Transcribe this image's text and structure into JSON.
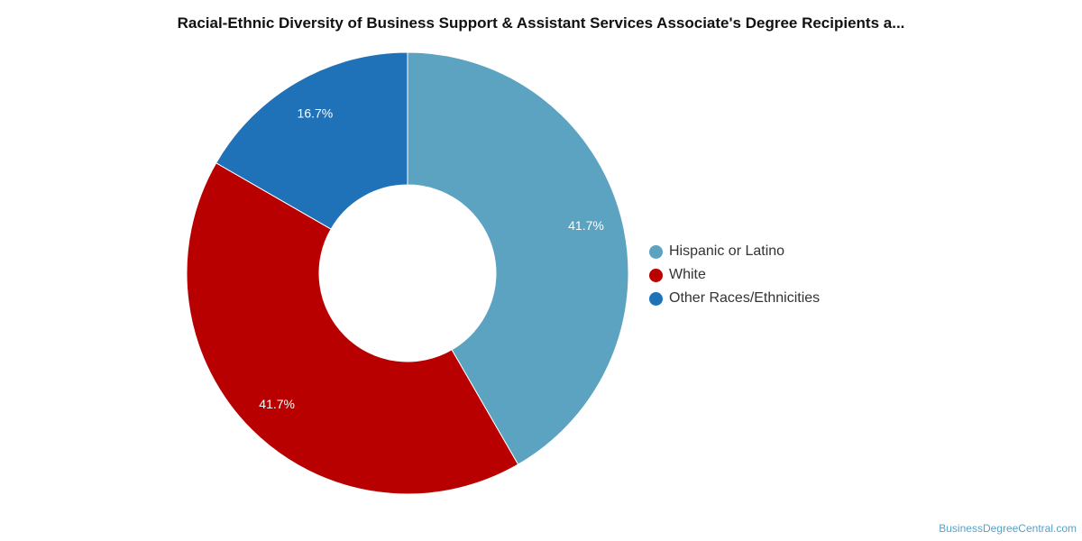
{
  "chart_data": {
    "type": "pie",
    "title": "Racial-Ethnic Diversity of Business Support & Assistant Services Associate's Degree Recipients a...",
    "style": "donut",
    "legend_position": "right",
    "slices": [
      {
        "name": "Hispanic or Latino",
        "value": 41.7,
        "label": "41.7%",
        "color": "#5ba3c0"
      },
      {
        "name": "White",
        "value": 41.7,
        "label": "41.7%",
        "color": "#b90000"
      },
      {
        "name": "Other Races/Ethnicities",
        "value": 16.7,
        "label": "16.7%",
        "color": "#1f72b8"
      }
    ]
  },
  "credit": "BusinessDegreeCentral.com"
}
